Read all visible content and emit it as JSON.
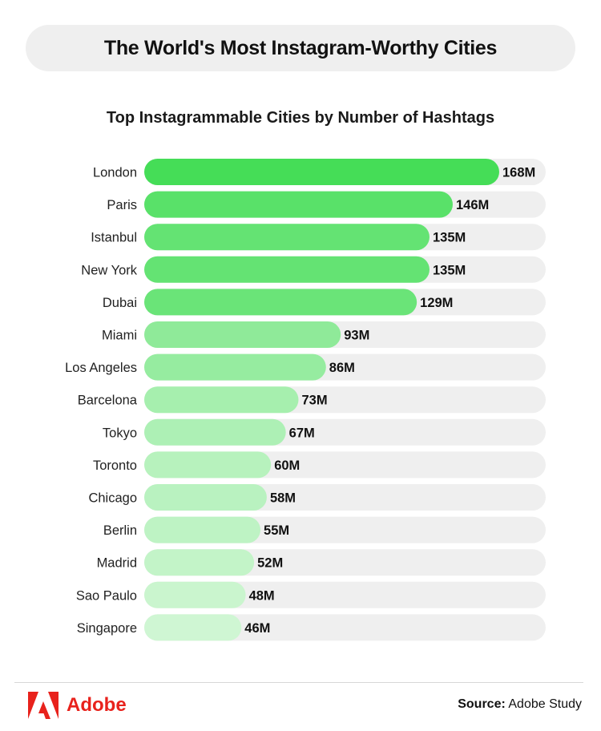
{
  "header": {
    "title": "The World's Most Instagram-Worthy Cities"
  },
  "chart_data": {
    "type": "bar",
    "orientation": "horizontal",
    "title": "Top Instagrammable Cities by Number of Hashtags",
    "categories": [
      "London",
      "Paris",
      "Istanbul",
      "New York",
      "Dubai",
      "Miami",
      "Los Angeles",
      "Barcelona",
      "Tokyo",
      "Toronto",
      "Chicago",
      "Berlin",
      "Madrid",
      "Sao Paulo",
      "Singapore"
    ],
    "values": [
      168,
      146,
      135,
      135,
      129,
      93,
      86,
      73,
      67,
      60,
      58,
      55,
      52,
      48,
      46
    ],
    "value_labels": [
      "168M",
      "146M",
      "135M",
      "135M",
      "129M",
      "93M",
      "86M",
      "73M",
      "67M",
      "60M",
      "58M",
      "55M",
      "52M",
      "48M",
      "46M"
    ],
    "unit": "M",
    "xlim": [
      0,
      168
    ],
    "grid": false,
    "colors": {
      "track": "#efefef",
      "bar_gradient_strong": "#45dd57",
      "bar_gradient_light": "#cff6d3"
    }
  },
  "footer": {
    "brand": "Adobe",
    "brand_color": "#e8221c",
    "source_label": "Source:",
    "source_text": "Adobe Study"
  }
}
